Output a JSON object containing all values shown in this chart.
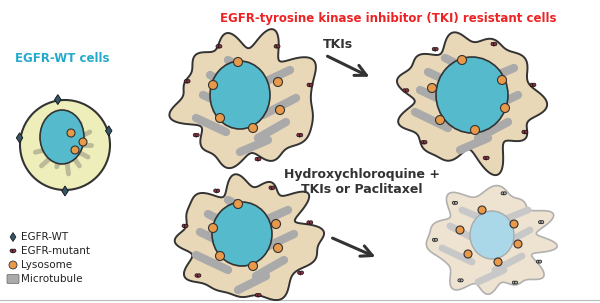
{
  "title_top": "EGFR-tyrosine kinase inhibitor (TKI) resistant cells",
  "title_top_color": "#EE2222",
  "egfr_wt_label": "EGFR-WT cells",
  "egfr_wt_color": "#22AACC",
  "label_tki": "TKIs",
  "label_hcq": "Hydroxychloroquine +\nTKIs or Paclitaxel",
  "cell_outline_color": "#333333",
  "cell_body_color": "#E8D8B8",
  "nucleus_color_normal": "#55BBCC",
  "nucleus_color_dead": "#AAD8E8",
  "microtubule_color": "#AAAAAA",
  "lysosome_color": "#E8994A",
  "lysosome_border": "#333333",
  "egfrmut_icon_color": "#883344",
  "egfrwt_icon_color": "#335566",
  "arrow_color": "#333333",
  "wt_cell_body": "#EEEEBB",
  "dead_cell_body": "#EDE0CC",
  "background": "#FFFFFF"
}
